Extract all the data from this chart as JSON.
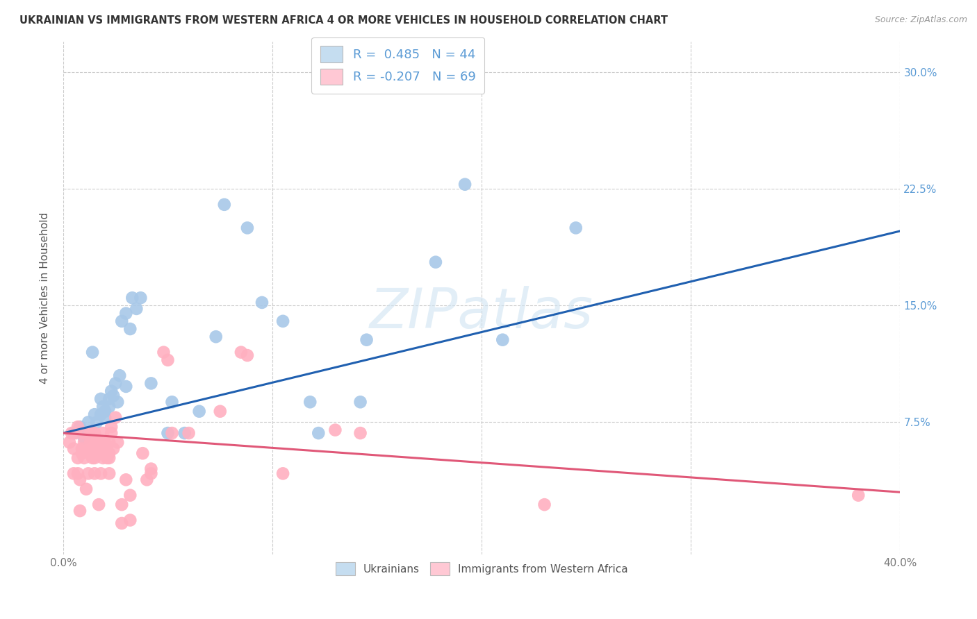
{
  "title": "UKRAINIAN VS IMMIGRANTS FROM WESTERN AFRICA 4 OR MORE VEHICLES IN HOUSEHOLD CORRELATION CHART",
  "source": "Source: ZipAtlas.com",
  "ylabel": "4 or more Vehicles in Household",
  "xmin": 0.0,
  "xmax": 0.4,
  "ymin": -0.01,
  "ymax": 0.32,
  "xticks": [
    0.0,
    0.1,
    0.2,
    0.3,
    0.4
  ],
  "xticklabels": [
    "0.0%",
    "",
    "",
    "",
    "40.0%"
  ],
  "yticks": [
    0.075,
    0.15,
    0.225,
    0.3
  ],
  "yticklabels": [
    "7.5%",
    "15.0%",
    "22.5%",
    "30.0%"
  ],
  "legend_labels_bottom": [
    "Ukrainians",
    "Immigrants from Western Africa"
  ],
  "blue_scatter_color": "#a8c8e8",
  "pink_scatter_color": "#ffb0c0",
  "blue_line_color": "#2060b0",
  "pink_line_color": "#e05878",
  "watermark": "ZIPatlas",
  "blue_scatter": [
    [
      0.005,
      0.068
    ],
    [
      0.008,
      0.072
    ],
    [
      0.01,
      0.065
    ],
    [
      0.012,
      0.075
    ],
    [
      0.014,
      0.12
    ],
    [
      0.015,
      0.08
    ],
    [
      0.016,
      0.075
    ],
    [
      0.018,
      0.09
    ],
    [
      0.018,
      0.08
    ],
    [
      0.019,
      0.085
    ],
    [
      0.02,
      0.082
    ],
    [
      0.02,
      0.078
    ],
    [
      0.022,
      0.09
    ],
    [
      0.022,
      0.085
    ],
    [
      0.023,
      0.095
    ],
    [
      0.024,
      0.092
    ],
    [
      0.025,
      0.1
    ],
    [
      0.026,
      0.088
    ],
    [
      0.027,
      0.105
    ],
    [
      0.028,
      0.14
    ],
    [
      0.03,
      0.098
    ],
    [
      0.03,
      0.145
    ],
    [
      0.032,
      0.135
    ],
    [
      0.033,
      0.155
    ],
    [
      0.035,
      0.148
    ],
    [
      0.037,
      0.155
    ],
    [
      0.042,
      0.1
    ],
    [
      0.05,
      0.068
    ],
    [
      0.052,
      0.088
    ],
    [
      0.058,
      0.068
    ],
    [
      0.065,
      0.082
    ],
    [
      0.073,
      0.13
    ],
    [
      0.077,
      0.215
    ],
    [
      0.088,
      0.2
    ],
    [
      0.095,
      0.152
    ],
    [
      0.105,
      0.14
    ],
    [
      0.118,
      0.088
    ],
    [
      0.122,
      0.068
    ],
    [
      0.142,
      0.088
    ],
    [
      0.145,
      0.128
    ],
    [
      0.178,
      0.178
    ],
    [
      0.192,
      0.228
    ],
    [
      0.21,
      0.128
    ],
    [
      0.245,
      0.2
    ]
  ],
  "pink_scatter": [
    [
      0.003,
      0.062
    ],
    [
      0.004,
      0.068
    ],
    [
      0.005,
      0.058
    ],
    [
      0.005,
      0.042
    ],
    [
      0.006,
      0.068
    ],
    [
      0.007,
      0.042
    ],
    [
      0.007,
      0.052
    ],
    [
      0.007,
      0.072
    ],
    [
      0.008,
      0.038
    ],
    [
      0.008,
      0.018
    ],
    [
      0.009,
      0.058
    ],
    [
      0.009,
      0.055
    ],
    [
      0.01,
      0.052
    ],
    [
      0.01,
      0.062
    ],
    [
      0.01,
      0.068
    ],
    [
      0.011,
      0.032
    ],
    [
      0.012,
      0.058
    ],
    [
      0.012,
      0.042
    ],
    [
      0.013,
      0.058
    ],
    [
      0.013,
      0.062
    ],
    [
      0.013,
      0.068
    ],
    [
      0.014,
      0.052
    ],
    [
      0.014,
      0.062
    ],
    [
      0.014,
      0.068
    ],
    [
      0.015,
      0.055
    ],
    [
      0.015,
      0.042
    ],
    [
      0.015,
      0.052
    ],
    [
      0.015,
      0.062
    ],
    [
      0.015,
      0.068
    ],
    [
      0.016,
      0.062
    ],
    [
      0.017,
      0.022
    ],
    [
      0.018,
      0.042
    ],
    [
      0.018,
      0.055
    ],
    [
      0.018,
      0.062
    ],
    [
      0.019,
      0.068
    ],
    [
      0.019,
      0.052
    ],
    [
      0.02,
      0.058
    ],
    [
      0.02,
      0.062
    ],
    [
      0.021,
      0.052
    ],
    [
      0.022,
      0.042
    ],
    [
      0.022,
      0.055
    ],
    [
      0.022,
      0.062
    ],
    [
      0.022,
      0.052
    ],
    [
      0.023,
      0.072
    ],
    [
      0.023,
      0.068
    ],
    [
      0.024,
      0.058
    ],
    [
      0.025,
      0.078
    ],
    [
      0.026,
      0.062
    ],
    [
      0.028,
      0.022
    ],
    [
      0.028,
      0.01
    ],
    [
      0.03,
      0.038
    ],
    [
      0.032,
      0.028
    ],
    [
      0.032,
      0.012
    ],
    [
      0.038,
      0.055
    ],
    [
      0.04,
      0.038
    ],
    [
      0.042,
      0.045
    ],
    [
      0.042,
      0.042
    ],
    [
      0.048,
      0.12
    ],
    [
      0.05,
      0.115
    ],
    [
      0.052,
      0.068
    ],
    [
      0.06,
      0.068
    ],
    [
      0.075,
      0.082
    ],
    [
      0.085,
      0.12
    ],
    [
      0.088,
      0.118
    ],
    [
      0.105,
      0.042
    ],
    [
      0.13,
      0.07
    ],
    [
      0.142,
      0.068
    ],
    [
      0.23,
      0.022
    ],
    [
      0.38,
      0.028
    ]
  ],
  "blue_trendline": [
    [
      0.0,
      0.068
    ],
    [
      0.4,
      0.198
    ]
  ],
  "pink_trendline": [
    [
      0.0,
      0.068
    ],
    [
      0.4,
      0.03
    ]
  ],
  "grid_color": "#cccccc",
  "bg_color": "#ffffff"
}
